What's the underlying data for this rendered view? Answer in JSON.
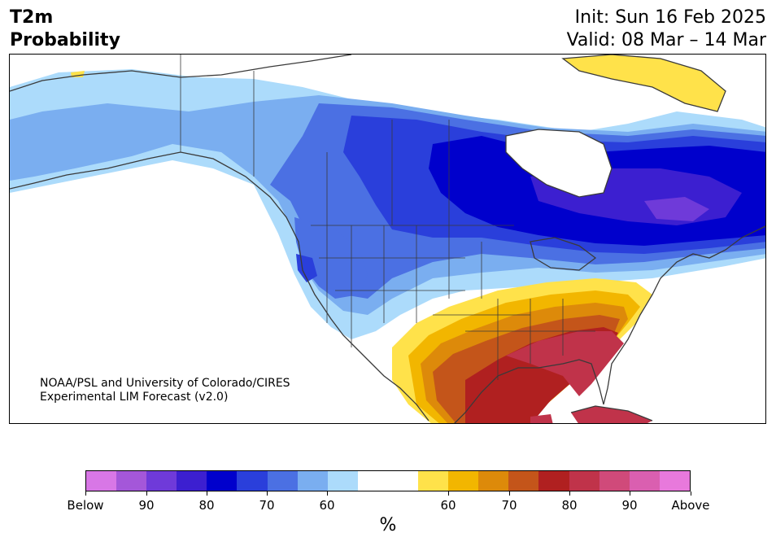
{
  "header": {
    "title_line1": "T2m",
    "title_line2": "Probability",
    "init": "Init: Sun 16 Feb 2025",
    "valid": "Valid: 08 Mar – 14 Mar"
  },
  "credit": {
    "line1": "NOAA/PSL and University of Colorado/CIRES",
    "line2": "Experimental LIM Forecast (v2.0)"
  },
  "colorbar": {
    "unit": "%",
    "colors": [
      "#d877e6",
      "#a457d9",
      "#6f3ad9",
      "#3c1fd0",
      "#0000cc",
      "#2a3fdb",
      "#4b70e3",
      "#7aaef0",
      "#acdbfb",
      "#ffffff",
      "#ffffff",
      "#ffe24a",
      "#f2b600",
      "#dd8a0a",
      "#c4551a",
      "#b02020",
      "#c0334a",
      "#d04a7a",
      "#da5fb0",
      "#e879dc"
    ],
    "labels": [
      "Below",
      "90",
      "80",
      "70",
      "60",
      "60",
      "70",
      "80",
      "90",
      "Above"
    ]
  },
  "colors": {
    "land_outline": "#3a3a3a",
    "background": "#ffffff"
  }
}
